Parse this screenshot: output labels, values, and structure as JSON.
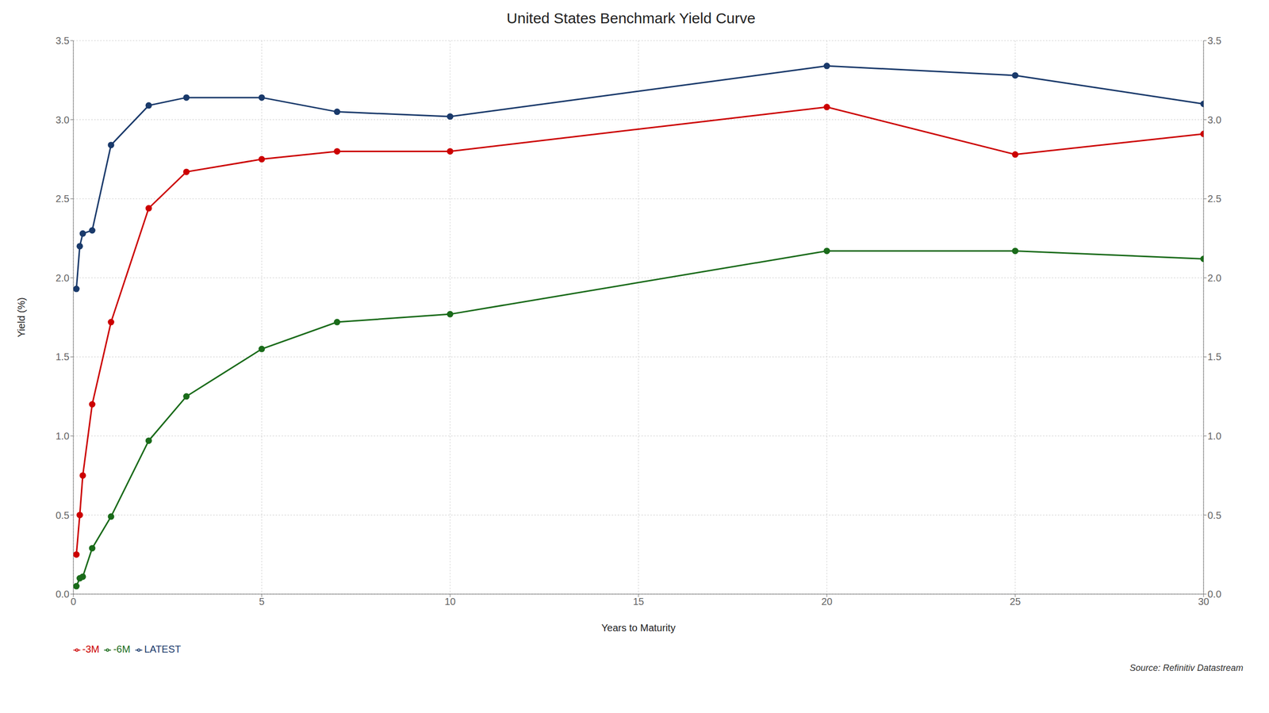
{
  "chart_data": {
    "type": "line",
    "title": "United States Benchmark Yield Curve",
    "x_label": "Years to Maturity",
    "y_label": "Yield (%)",
    "x": [
      0.08,
      0.17,
      0.25,
      0.5,
      1,
      2,
      3,
      5,
      7,
      10,
      20,
      25,
      30
    ],
    "series": [
      {
        "name": "LATEST",
        "color": "#1a3a6b",
        "values": [
          1.93,
          2.2,
          2.28,
          2.3,
          2.84,
          3.09,
          3.14,
          3.14,
          3.05,
          3.02,
          3.34,
          3.28,
          3.1
        ]
      },
      {
        "name": "-3M",
        "color": "#cc0000",
        "values": [
          0.25,
          0.5,
          0.75,
          1.2,
          1.72,
          2.44,
          2.67,
          2.75,
          2.8,
          2.8,
          3.08,
          2.78,
          2.91
        ]
      },
      {
        "name": "-6M",
        "color": "#1a6b1a",
        "values": [
          0.05,
          0.1,
          0.11,
          0.29,
          0.49,
          0.97,
          1.25,
          1.55,
          1.72,
          1.77,
          2.17,
          2.17,
          2.12
        ]
      }
    ],
    "xlim": [
      0,
      30
    ],
    "xticks": [
      0,
      5,
      10,
      15,
      20,
      25,
      30
    ],
    "ylim": [
      0.0,
      3.5
    ],
    "yticks": [
      {
        "value": 0,
        "label": "0.0"
      },
      0.5,
      {
        "value": 1,
        "label": "1.0"
      },
      1.5,
      {
        "value": 2,
        "label": "2.0"
      },
      2.5,
      {
        "value": 3,
        "label": "3.0"
      },
      3.5
    ],
    "y2lim": [
      0.0,
      3.5
    ],
    "y2ticks": [
      {
        "value": 0,
        "label": "0.0"
      },
      0.5,
      {
        "value": 1,
        "label": "1.0"
      },
      1.5,
      {
        "value": 2,
        "label": "2.0"
      },
      2.5,
      {
        "value": 3,
        "label": "3.0"
      },
      3.5
    ],
    "grid": true,
    "legend": "bottom",
    "marker": "circle",
    "annotations": [
      "Source: Refinitiv Datastream"
    ]
  }
}
